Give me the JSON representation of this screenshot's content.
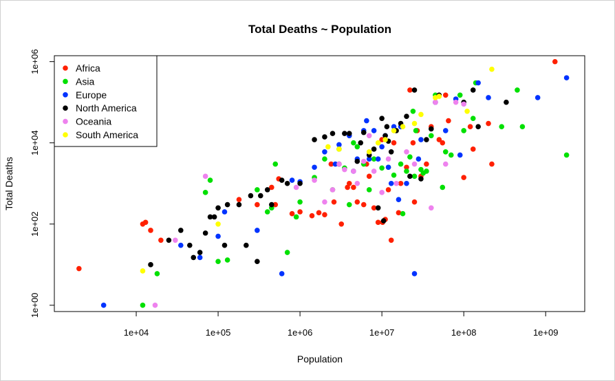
{
  "chart_data": {
    "type": "scatter",
    "title": "Total Deaths ~ Population",
    "xlabel": "Population",
    "ylabel": "Total Deaths",
    "x_scale": "log",
    "y_scale": "log",
    "xlim": [
      1000,
      3000000000
    ],
    "ylim": [
      0.7,
      1400000
    ],
    "x_ticks": [
      10000,
      100000,
      1000000,
      10000000,
      100000000,
      1000000000
    ],
    "x_tick_labels": [
      "1e+04",
      "1e+05",
      "1e+06",
      "1e+07",
      "1e+08",
      "1e+09"
    ],
    "y_ticks": [
      1,
      100,
      10000,
      1000000
    ],
    "y_tick_labels": [
      "1e+00",
      "1e+02",
      "1e+04",
      "1e+06"
    ],
    "legend_position": "top-left",
    "series": [
      {
        "name": "Africa",
        "color": "#ff2000",
        "points": [
          [
            2000,
            8
          ],
          [
            12000,
            100
          ],
          [
            13000,
            110
          ],
          [
            15000,
            70
          ],
          [
            20000,
            40
          ],
          [
            180000,
            400
          ],
          [
            300000,
            300
          ],
          [
            450000,
            800
          ],
          [
            500000,
            300
          ],
          [
            550000,
            1300
          ],
          [
            800000,
            180
          ],
          [
            1000000,
            200
          ],
          [
            1400000,
            160
          ],
          [
            1700000,
            190
          ],
          [
            2000000,
            170
          ],
          [
            2400000,
            3000
          ],
          [
            2600000,
            350
          ],
          [
            3200000,
            100
          ],
          [
            3800000,
            800
          ],
          [
            4000000,
            1000
          ],
          [
            4500000,
            800
          ],
          [
            5000000,
            350
          ],
          [
            6000000,
            300
          ],
          [
            6500000,
            3000
          ],
          [
            7000000,
            1500
          ],
          [
            8000000,
            250
          ],
          [
            9000000,
            110
          ],
          [
            10000000,
            12000
          ],
          [
            10200000,
            110
          ],
          [
            11000000,
            130
          ],
          [
            12000000,
            700
          ],
          [
            13000000,
            40
          ],
          [
            14000000,
            10000
          ],
          [
            16000000,
            190
          ],
          [
            17000000,
            1000
          ],
          [
            20000000,
            2500
          ],
          [
            22000000,
            200000
          ],
          [
            24000000,
            10000
          ],
          [
            25000000,
            350
          ],
          [
            27000000,
            20000
          ],
          [
            30000000,
            1500
          ],
          [
            35000000,
            3000
          ],
          [
            40000000,
            25000
          ],
          [
            45000000,
            100000
          ],
          [
            50000000,
            12000
          ],
          [
            55000000,
            10000
          ],
          [
            60000000,
            150000
          ],
          [
            65000000,
            35000
          ],
          [
            100000000,
            1400
          ],
          [
            120000000,
            25000
          ],
          [
            130000000,
            7000
          ],
          [
            200000000,
            30000
          ],
          [
            220000000,
            3000
          ],
          [
            1300000000,
            1000000
          ]
        ]
      },
      {
        "name": "Asia",
        "color": "#00e000",
        "points": [
          [
            12000,
            1
          ],
          [
            18000,
            6
          ],
          [
            70000,
            600
          ],
          [
            80000,
            1200
          ],
          [
            100000,
            12
          ],
          [
            130000,
            13
          ],
          [
            300000,
            700
          ],
          [
            400000,
            200
          ],
          [
            450000,
            250
          ],
          [
            500000,
            3000
          ],
          [
            700000,
            20
          ],
          [
            900000,
            150
          ],
          [
            1000000,
            350
          ],
          [
            1500000,
            1400
          ],
          [
            2000000,
            4000
          ],
          [
            2500000,
            700
          ],
          [
            3000000,
            7000
          ],
          [
            3500000,
            2400
          ],
          [
            4000000,
            300
          ],
          [
            4500000,
            10000
          ],
          [
            5000000,
            8000
          ],
          [
            6000000,
            3000
          ],
          [
            7000000,
            700
          ],
          [
            8000000,
            4000
          ],
          [
            10000000,
            2400
          ],
          [
            12000000,
            2500
          ],
          [
            14000000,
            1600
          ],
          [
            17000000,
            3000
          ],
          [
            18000000,
            180
          ],
          [
            20000000,
            2000
          ],
          [
            22000000,
            4500
          ],
          [
            24000000,
            60000
          ],
          [
            25000000,
            1500
          ],
          [
            26000000,
            20000
          ],
          [
            30000000,
            2200
          ],
          [
            32000000,
            1800
          ],
          [
            35000000,
            2000
          ],
          [
            40000000,
            15000
          ],
          [
            45000000,
            150000
          ],
          [
            55000000,
            800
          ],
          [
            60000000,
            6000
          ],
          [
            70000000,
            5000
          ],
          [
            90000000,
            150000
          ],
          [
            100000000,
            20000
          ],
          [
            130000000,
            40000
          ],
          [
            140000000,
            300000
          ],
          [
            290000000,
            25000
          ],
          [
            450000000,
            200000
          ],
          [
            520000000,
            25000
          ],
          [
            1800000000,
            5000
          ]
        ]
      },
      {
        "name": "Europe",
        "color": "#0033ff",
        "points": [
          [
            4000,
            1
          ],
          [
            35000,
            30
          ],
          [
            60000,
            15
          ],
          [
            100000,
            50
          ],
          [
            120000,
            200
          ],
          [
            300000,
            70
          ],
          [
            600000,
            6
          ],
          [
            800000,
            1200
          ],
          [
            1000000,
            1100
          ],
          [
            1500000,
            2500
          ],
          [
            2000000,
            6000
          ],
          [
            2700000,
            3000
          ],
          [
            3000000,
            9000
          ],
          [
            4000000,
            15000
          ],
          [
            4500000,
            2000
          ],
          [
            5000000,
            4000
          ],
          [
            6000000,
            20000
          ],
          [
            6500000,
            35000
          ],
          [
            7000000,
            4000
          ],
          [
            8000000,
            20000
          ],
          [
            9000000,
            4000
          ],
          [
            10000000,
            8000
          ],
          [
            11000000,
            15000
          ],
          [
            12000000,
            2500
          ],
          [
            13000000,
            1000
          ],
          [
            14000000,
            25000
          ],
          [
            16000000,
            400
          ],
          [
            17000000,
            25000
          ],
          [
            20000000,
            1000
          ],
          [
            25000000,
            6
          ],
          [
            28000000,
            4000
          ],
          [
            30000000,
            12000
          ],
          [
            45000000,
            100000
          ],
          [
            60000000,
            20000
          ],
          [
            80000000,
            120000
          ],
          [
            90000000,
            5000
          ],
          [
            150000000,
            300000
          ],
          [
            200000000,
            130000
          ],
          [
            800000000,
            130000
          ],
          [
            1800000000,
            400000
          ]
        ]
      },
      {
        "name": "North America",
        "color": "#000000",
        "points": [
          [
            15000,
            10
          ],
          [
            25000,
            40
          ],
          [
            35000,
            70
          ],
          [
            45000,
            30
          ],
          [
            50000,
            15
          ],
          [
            60000,
            20
          ],
          [
            70000,
            60
          ],
          [
            80000,
            150
          ],
          [
            90000,
            150
          ],
          [
            100000,
            250
          ],
          [
            120000,
            30
          ],
          [
            130000,
            300
          ],
          [
            180000,
            300
          ],
          [
            220000,
            30
          ],
          [
            250000,
            500
          ],
          [
            300000,
            12
          ],
          [
            330000,
            500
          ],
          [
            400000,
            700
          ],
          [
            450000,
            300
          ],
          [
            600000,
            1200
          ],
          [
            700000,
            1000
          ],
          [
            1000000,
            1000
          ],
          [
            1500000,
            12000
          ],
          [
            2000000,
            14000
          ],
          [
            2500000,
            17000
          ],
          [
            3000000,
            3000
          ],
          [
            3500000,
            17000
          ],
          [
            4000000,
            17000
          ],
          [
            5000000,
            3500
          ],
          [
            5500000,
            10000
          ],
          [
            6000000,
            18000
          ],
          [
            7000000,
            5000
          ],
          [
            8000000,
            7000
          ],
          [
            9000000,
            250
          ],
          [
            10000000,
            40000
          ],
          [
            10500000,
            120
          ],
          [
            11000000,
            15000
          ],
          [
            11500000,
            25000
          ],
          [
            12000000,
            11000
          ],
          [
            13000000,
            6000
          ],
          [
            15000000,
            20000
          ],
          [
            17000000,
            30000
          ],
          [
            20000000,
            45000
          ],
          [
            22000000,
            1500
          ],
          [
            25000000,
            200000
          ],
          [
            30000000,
            1300
          ],
          [
            35000000,
            12000
          ],
          [
            40000000,
            22000
          ],
          [
            50000000,
            150000
          ],
          [
            100000000,
            100000
          ],
          [
            130000000,
            200000
          ],
          [
            150000000,
            25000
          ],
          [
            330000000,
            100000
          ]
        ]
      },
      {
        "name": "Oceania",
        "color": "#ee82ee",
        "points": [
          [
            17000,
            1
          ],
          [
            30000,
            40
          ],
          [
            70000,
            1500
          ],
          [
            900000,
            800
          ],
          [
            1500000,
            1200
          ],
          [
            2000000,
            350
          ],
          [
            2500000,
            700
          ],
          [
            3000000,
            3000
          ],
          [
            3500000,
            2200
          ],
          [
            4500000,
            2000
          ],
          [
            5000000,
            1000
          ],
          [
            6000000,
            3500
          ],
          [
            7000000,
            15000
          ],
          [
            8000000,
            2000
          ],
          [
            10000000,
            600
          ],
          [
            12000000,
            4000
          ],
          [
            15000000,
            1000
          ],
          [
            20000000,
            6000
          ],
          [
            25000000,
            3000
          ],
          [
            40000000,
            250
          ],
          [
            45000000,
            100000
          ],
          [
            60000000,
            3000
          ],
          [
            80000000,
            100000
          ],
          [
            100000000,
            90000
          ]
        ]
      },
      {
        "name": "South America",
        "color": "#ffff00",
        "points": [
          [
            12000,
            7
          ],
          [
            100000,
            100
          ],
          [
            2200000,
            8000
          ],
          [
            3000000,
            7000
          ],
          [
            7000000,
            6000
          ],
          [
            9000000,
            10000
          ],
          [
            11000000,
            12000
          ],
          [
            14000000,
            20000
          ],
          [
            18000000,
            25000
          ],
          [
            25000000,
            30000
          ],
          [
            30000000,
            50000
          ],
          [
            45000000,
            130000
          ],
          [
            50000000,
            140000
          ],
          [
            110000000,
            60000
          ],
          [
            220000000,
            650000
          ]
        ]
      }
    ]
  }
}
